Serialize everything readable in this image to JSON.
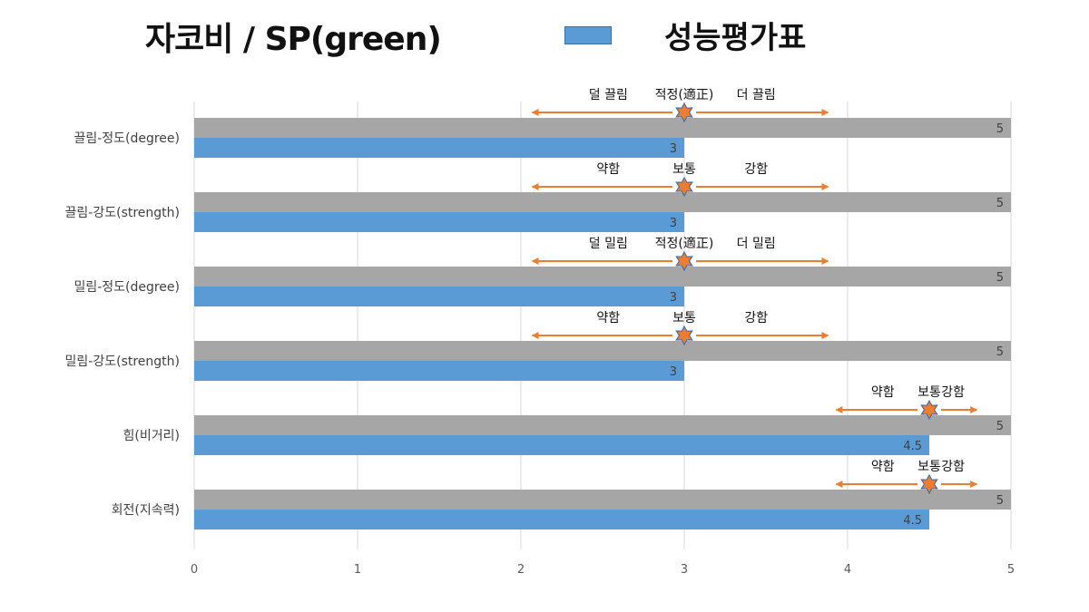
{
  "chart_data": {
    "type": "bar",
    "orientation": "horizontal",
    "title": "자코비 / SP(green)",
    "categories": [
      "끌림-정도(degree)",
      "끌림-강도(strength)",
      "밀림-정도(degree)",
      "밀림-강도(strength)",
      "힘(비거리)",
      "회전(지속력)"
    ],
    "series": [
      {
        "name": "",
        "color": "#a6a6a6",
        "values": [
          5,
          5,
          5,
          5,
          5,
          5
        ]
      },
      {
        "name": "성능평가표",
        "color": "#5b9bd5",
        "values": [
          3,
          3,
          3,
          3,
          4.5,
          4.5
        ]
      }
    ],
    "xlim": [
      0,
      5
    ],
    "xticks": [
      "0",
      "1",
      "2",
      "3",
      "4",
      "5"
    ],
    "grid": true,
    "legend_position": "top",
    "annotations": [
      {
        "row": 0,
        "value": 3,
        "arrow_from": 2.07,
        "arrow_to": 3.88,
        "left": "덜 끌림",
        "mid": "적정(適正)",
        "right": "더 끌림"
      },
      {
        "row": 1,
        "value": 3,
        "arrow_from": 2.07,
        "arrow_to": 3.88,
        "left": "약함",
        "mid": "보통",
        "right": "강함"
      },
      {
        "row": 2,
        "value": 3,
        "arrow_from": 2.07,
        "arrow_to": 3.88,
        "left": "덜 밀림",
        "mid": "적정(適正)",
        "right": "더 밀림"
      },
      {
        "row": 3,
        "value": 3,
        "arrow_from": 2.07,
        "arrow_to": 3.88,
        "left": "약함",
        "mid": "보통",
        "right": "강함"
      },
      {
        "row": 4,
        "value": 4.5,
        "arrow_from": 3.93,
        "arrow_to": 4.79,
        "left": "약함",
        "mid": "보통",
        "right": "강함"
      },
      {
        "row": 5,
        "value": 4.5,
        "arrow_from": 3.93,
        "arrow_to": 4.79,
        "left": "약함",
        "mid": "보통",
        "right": "강함"
      }
    ],
    "annotation_color": "#ed7d31",
    "marker_color": "#ed7d31",
    "marker_outline": "#4a6fa5"
  }
}
